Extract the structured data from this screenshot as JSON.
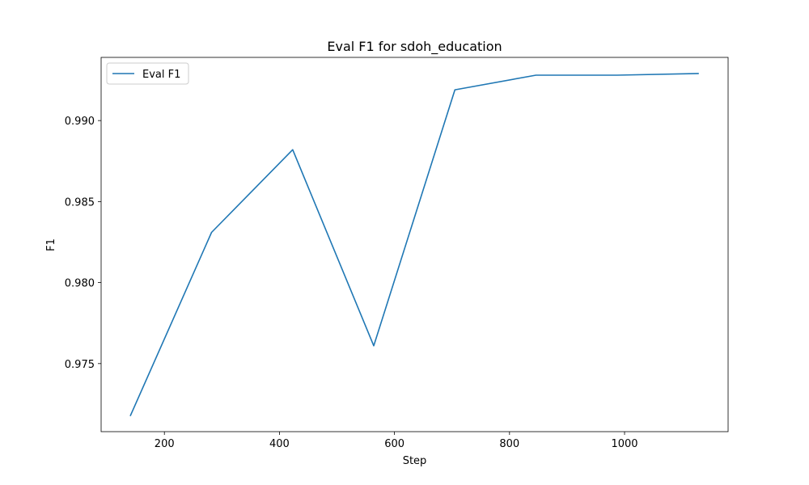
{
  "chart_data": {
    "type": "line",
    "title": "Eval F1 for sdoh_education",
    "xlabel": "Step",
    "ylabel": "F1",
    "xlim": [
      90,
      1180
    ],
    "ylim": [
      0.9708,
      0.9939
    ],
    "xticks": [
      200,
      400,
      600,
      800,
      1000
    ],
    "yticks": [
      0.975,
      0.98,
      0.985,
      0.99
    ],
    "ytick_labels": [
      "0.975",
      "0.980",
      "0.985",
      "0.990"
    ],
    "grid": false,
    "legend": {
      "position": "upper left",
      "entries": [
        "Eval F1"
      ]
    },
    "series": [
      {
        "name": "Eval F1",
        "color": "#1f77b4",
        "x": [
          141,
          282,
          423,
          564,
          705,
          846,
          987,
          1128
        ],
        "y": [
          0.9718,
          0.9831,
          0.9882,
          0.9761,
          0.9919,
          0.9928,
          0.9928,
          0.9929
        ]
      }
    ]
  }
}
